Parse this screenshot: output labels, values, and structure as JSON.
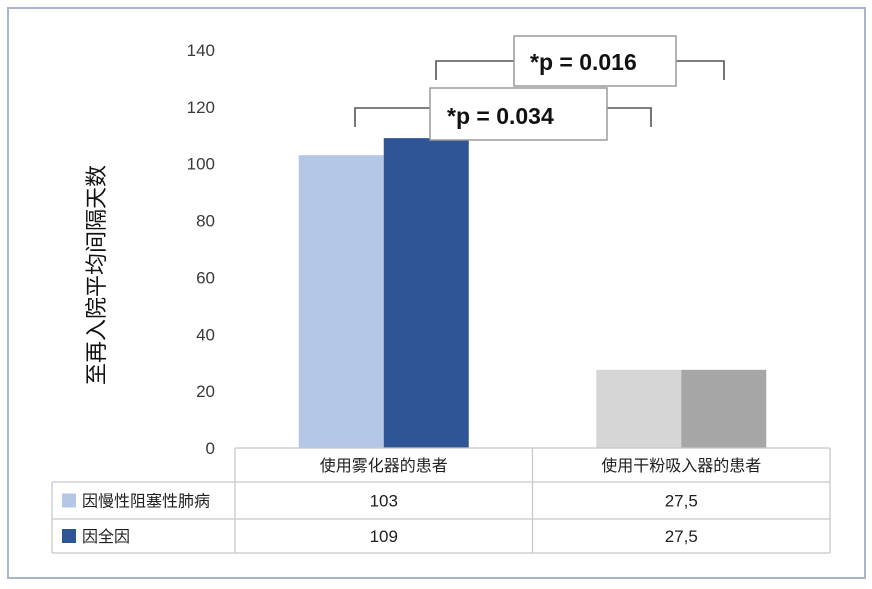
{
  "chart_data": {
    "type": "bar",
    "ylabel": "至再入院平均间隔天数",
    "ylim": [
      0,
      140
    ],
    "yticks": [
      0,
      20,
      40,
      60,
      80,
      100,
      120,
      140
    ],
    "grid": false,
    "legend": "bottom-left",
    "categories": [
      "使用雾化器的患者",
      "使用干粉吸入器的患者"
    ],
    "series": [
      {
        "name": "因慢性阻塞性肺病",
        "values": [
          103,
          27.5
        ],
        "value_labels": [
          "103",
          "27,5"
        ],
        "color": "#b4c7e7",
        "bar_colors": [
          "#b4c7e7",
          "#d6d6d6"
        ]
      },
      {
        "name": "因全因",
        "values": [
          109,
          27.5
        ],
        "value_labels": [
          "109",
          "27,5"
        ],
        "color": "#2f5597",
        "bar_colors": [
          "#2f5597",
          "#a6a6a6"
        ]
      }
    ],
    "annotations": [
      {
        "text": "*p = 0.034",
        "series": 0,
        "between": [
          0,
          1
        ]
      },
      {
        "text": "*p = 0.016",
        "series": 1,
        "between": [
          0,
          1
        ]
      }
    ]
  },
  "colors": {
    "frame": "#a9b5c8",
    "table_lines": "#c8c8c8",
    "bracket": "#555555",
    "annotation_box": "#9a9a9a"
  }
}
